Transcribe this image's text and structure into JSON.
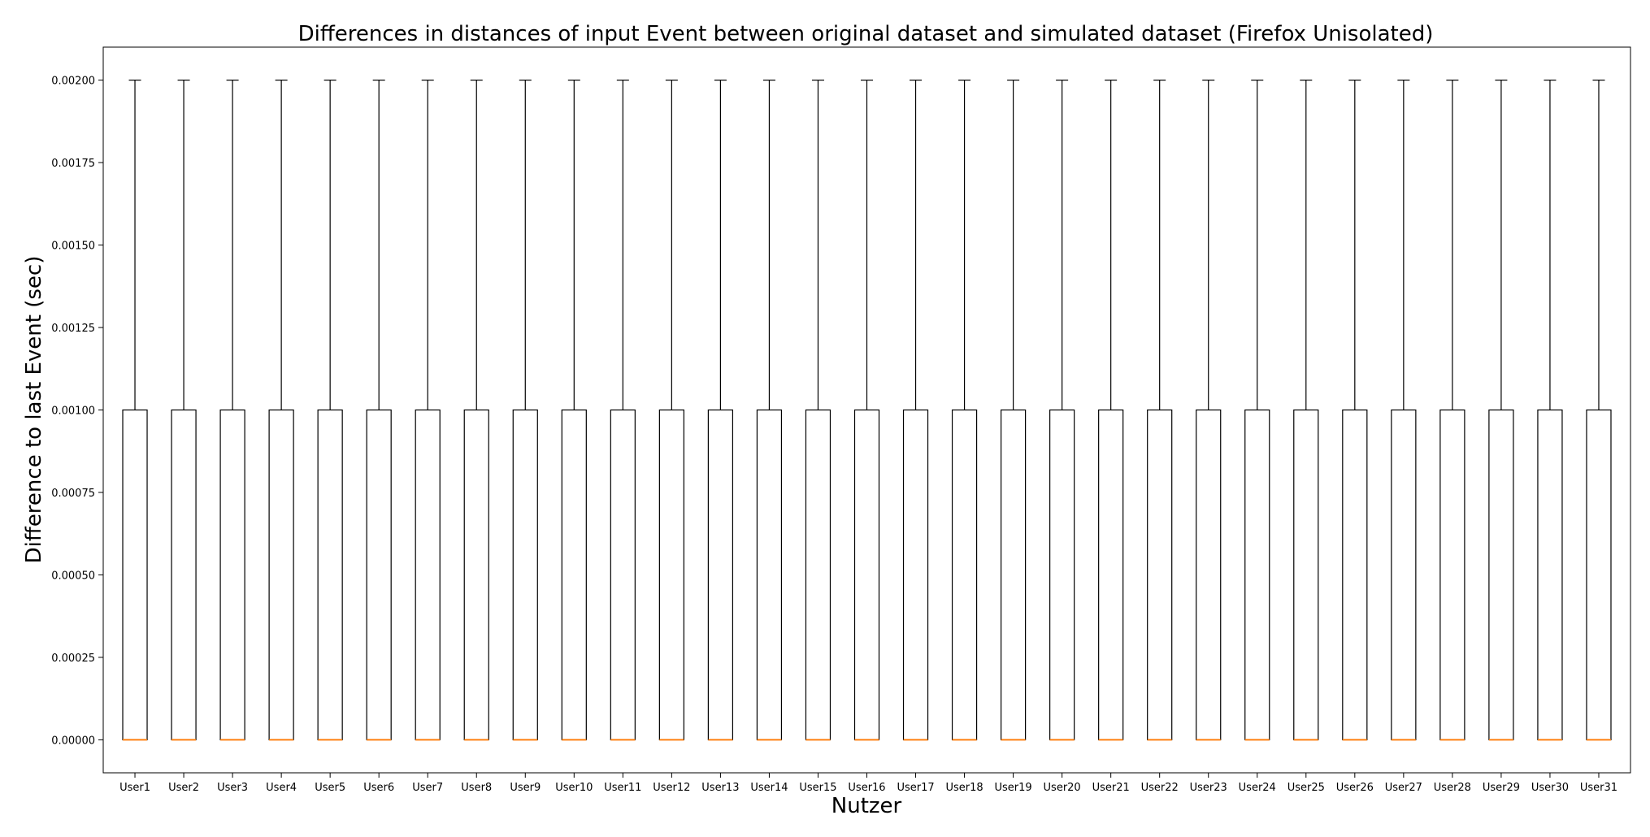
{
  "chart_data": {
    "type": "box",
    "title": "Differences in distances of input Event between original dataset and simulated dataset (Firefox Unisolated)",
    "xlabel": "Nutzer",
    "ylabel": "Difference to last Event (sec)",
    "ylim": [
      -0.0001,
      0.0021
    ],
    "yticks": [
      "0.00000",
      "0.00025",
      "0.00050",
      "0.00075",
      "0.00100",
      "0.00125",
      "0.00150",
      "0.00175",
      "0.00200"
    ],
    "grid": false,
    "categories": [
      "User1",
      "User2",
      "User3",
      "User4",
      "User5",
      "User6",
      "User7",
      "User8",
      "User9",
      "User10",
      "User11",
      "User12",
      "User13",
      "User14",
      "User15",
      "User16",
      "User17",
      "User18",
      "User19",
      "User20",
      "User21",
      "User22",
      "User23",
      "User24",
      "User25",
      "User26",
      "User27",
      "User28",
      "User29",
      "User30",
      "User31"
    ],
    "boxes": {
      "whisker_low": 0.0,
      "q1": 0.0,
      "median": 0.0,
      "q3": 0.001,
      "whisker_high": 0.002
    },
    "colors": {
      "box": "#000000",
      "median": "#ff7f0e"
    }
  }
}
